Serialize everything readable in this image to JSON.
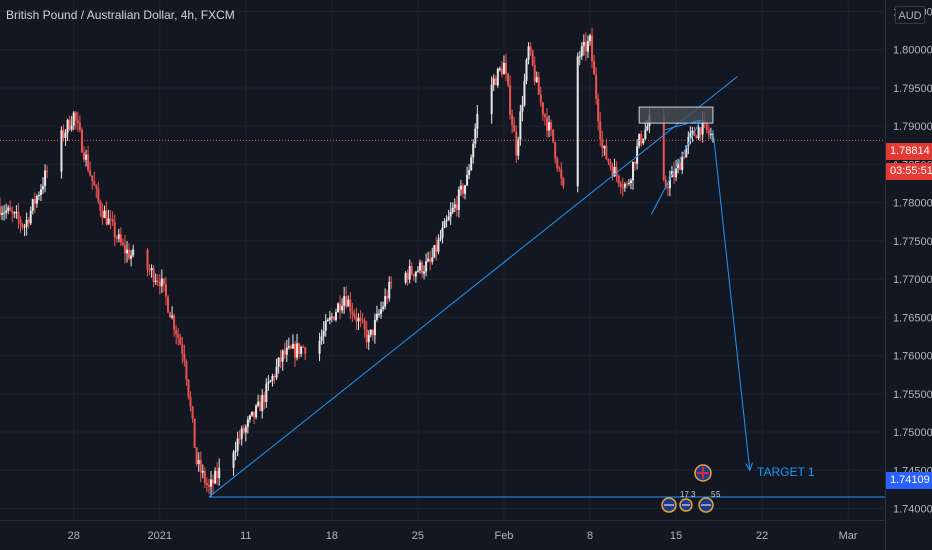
{
  "header": {
    "title": "British Pound / Australian Dollar, 4h, FXCM",
    "currency_button": "AUD"
  },
  "price_axis": {
    "labels": [
      "1.80500",
      "1.80000",
      "1.79500",
      "1.79000",
      "1.78500",
      "1.78000",
      "1.77500",
      "1.77000",
      "1.76500",
      "1.76000",
      "1.75500",
      "1.75000",
      "1.74500",
      "1.74000"
    ]
  },
  "time_axis": {
    "labels": [
      "28",
      "2021",
      "11",
      "18",
      "25",
      "Feb",
      "8",
      "15",
      "22",
      "Mar"
    ]
  },
  "tags": {
    "current_price": "1.78814",
    "countdown": "03:55:51",
    "target_price": "1.74109"
  },
  "annotations": {
    "target_label": "TARGET 1"
  },
  "event_badges": [
    "17",
    "3",
    "5",
    "5"
  ],
  "colors": {
    "background": "#131722",
    "up_candle": "#e8e8e8",
    "down_candle": "#ef5350",
    "trendline": "#2196f3",
    "supply_zone": "#4a4d55"
  },
  "chart_data": {
    "type": "candlestick",
    "title": "British Pound / Australian Dollar, 4h, FXCM",
    "xlabel": "",
    "ylabel": "AUD",
    "ylim": [
      1.7385,
      1.8065
    ],
    "x_range": [
      "2020-12-22",
      "2021-03-04"
    ],
    "x_ticks": [
      "28",
      "2021",
      "11",
      "18",
      "25",
      "Feb",
      "8",
      "15",
      "22",
      "Mar"
    ],
    "grid": true,
    "path": [
      [
        "2020-12-22",
        1.7795
      ],
      [
        "2020-12-24",
        1.777
      ],
      [
        "2020-12-27",
        1.7885
      ],
      [
        "2020-12-28",
        1.7915
      ],
      [
        "2020-12-30",
        1.78
      ],
      [
        "2021-01-01",
        1.774
      ],
      [
        "2021-01-04",
        1.77
      ],
      [
        "2021-01-06",
        1.76
      ],
      [
        "2021-01-07",
        1.746
      ],
      [
        "2021-01-08",
        1.7425
      ],
      [
        "2021-01-10",
        1.748
      ],
      [
        "2021-01-12",
        1.753
      ],
      [
        "2021-01-14",
        1.76
      ],
      [
        "2021-01-17",
        1.762
      ],
      [
        "2021-01-19",
        1.768
      ],
      [
        "2021-01-21",
        1.762
      ],
      [
        "2021-01-23",
        1.77
      ],
      [
        "2021-01-26",
        1.772
      ],
      [
        "2021-01-27",
        1.776
      ],
      [
        "2021-01-29",
        1.783
      ],
      [
        "2021-01-30",
        1.793
      ],
      [
        "2021-02-01",
        1.798
      ],
      [
        "2021-02-02",
        1.787
      ],
      [
        "2021-02-03",
        1.8
      ],
      [
        "2021-02-04",
        1.793
      ],
      [
        "2021-02-05",
        1.788
      ],
      [
        "2021-02-06",
        1.78
      ],
      [
        "2021-02-07",
        1.799
      ],
      [
        "2021-02-08",
        1.801
      ],
      [
        "2021-02-09",
        1.787
      ],
      [
        "2021-02-10",
        1.784
      ],
      [
        "2021-02-11",
        1.782
      ],
      [
        "2021-02-12",
        1.788
      ],
      [
        "2021-02-13",
        1.791
      ],
      [
        "2021-02-14",
        1.782
      ],
      [
        "2021-02-15",
        1.784
      ],
      [
        "2021-02-16",
        1.788
      ],
      [
        "2021-02-17",
        1.79
      ],
      [
        "2021-02-18",
        1.7885
      ]
    ],
    "current_price": 1.78814,
    "target_price": 1.74109,
    "drawings": [
      {
        "type": "trendline",
        "from": [
          "2021-01-08",
          1.7415
        ],
        "to": [
          "2021-02-20",
          1.7965
        ]
      },
      {
        "type": "horizontal_line",
        "from": [
          "2021-01-08",
          1.7415
        ],
        "to": [
          "2021-03-04",
          1.7415
        ]
      },
      {
        "type": "rectangle",
        "from": [
          "2021-02-12",
          1.7925
        ],
        "to": [
          "2021-02-18",
          1.7904
        ]
      },
      {
        "type": "wedge_lower",
        "from": [
          "2021-02-13",
          1.7785
        ],
        "to": [
          "2021-02-17",
          1.7908
        ]
      },
      {
        "type": "wedge_upper",
        "from": [
          "2021-02-14",
          1.7895
        ],
        "to": [
          "2021-02-17",
          1.7908
        ]
      },
      {
        "type": "arrow",
        "from": [
          "2021-02-18",
          1.7895
        ],
        "to": [
          "2021-02-21",
          1.745
        ]
      }
    ],
    "annotations": [
      "TARGET 1"
    ]
  }
}
